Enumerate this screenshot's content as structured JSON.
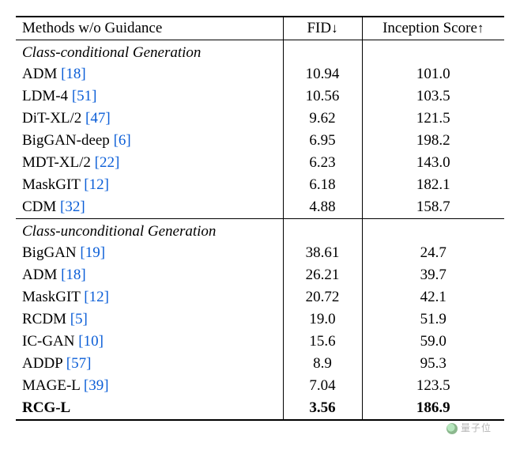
{
  "table": {
    "columns": {
      "method": "Methods w/o Guidance",
      "fid": "FID",
      "fid_arrow": "↓",
      "is": "Inception Score",
      "is_arrow": "↑"
    },
    "col_widths": {
      "method": "auto",
      "fid": 100,
      "is": 180
    },
    "font_size_pt": 14,
    "ref_color": "#0b5ed7",
    "rule_color": "#000000",
    "background_color": "#ffffff",
    "sections": [
      {
        "title": "Class-conditional Generation",
        "rows": [
          {
            "name": "ADM",
            "ref": "[18]",
            "fid": "10.94",
            "is": "101.0",
            "bold": false
          },
          {
            "name": "LDM-4",
            "ref": "[51]",
            "fid": "10.56",
            "is": "103.5",
            "bold": false
          },
          {
            "name": "DiT-XL/2",
            "ref": "[47]",
            "fid": "9.62",
            "is": "121.5",
            "bold": false
          },
          {
            "name": "BigGAN-deep",
            "ref": "[6]",
            "fid": "6.95",
            "is": "198.2",
            "bold": false
          },
          {
            "name": "MDT-XL/2",
            "ref": "[22]",
            "fid": "6.23",
            "is": "143.0",
            "bold": false
          },
          {
            "name": "MaskGIT",
            "ref": "[12]",
            "fid": "6.18",
            "is": "182.1",
            "bold": false
          },
          {
            "name": "CDM",
            "ref": "[32]",
            "fid": "4.88",
            "is": "158.7",
            "bold": false
          }
        ]
      },
      {
        "title": "Class-unconditional Generation",
        "rows": [
          {
            "name": "BigGAN",
            "ref": "[19]",
            "fid": "38.61",
            "is": "24.7",
            "bold": false
          },
          {
            "name": "ADM",
            "ref": "[18]",
            "fid": "26.21",
            "is": "39.7",
            "bold": false
          },
          {
            "name": "MaskGIT",
            "ref": "[12]",
            "fid": "20.72",
            "is": "42.1",
            "bold": false
          },
          {
            "name": "RCDM",
            "ref": "[5]",
            "fid": "19.0",
            "is": "51.9",
            "bold": false
          },
          {
            "name": "IC-GAN",
            "ref": "[10]",
            "fid": "15.6",
            "is": "59.0",
            "bold": false
          },
          {
            "name": "ADDP",
            "ref": "[57]",
            "fid": "8.9",
            "is": "95.3",
            "bold": false
          },
          {
            "name": "MAGE-L",
            "ref": "[39]",
            "fid": "7.04",
            "is": "123.5",
            "bold": false
          },
          {
            "name": "RCG-L",
            "ref": "",
            "fid": "3.56",
            "is": "186.9",
            "bold": true
          }
        ]
      }
    ]
  },
  "watermark": {
    "text": "量子位"
  }
}
